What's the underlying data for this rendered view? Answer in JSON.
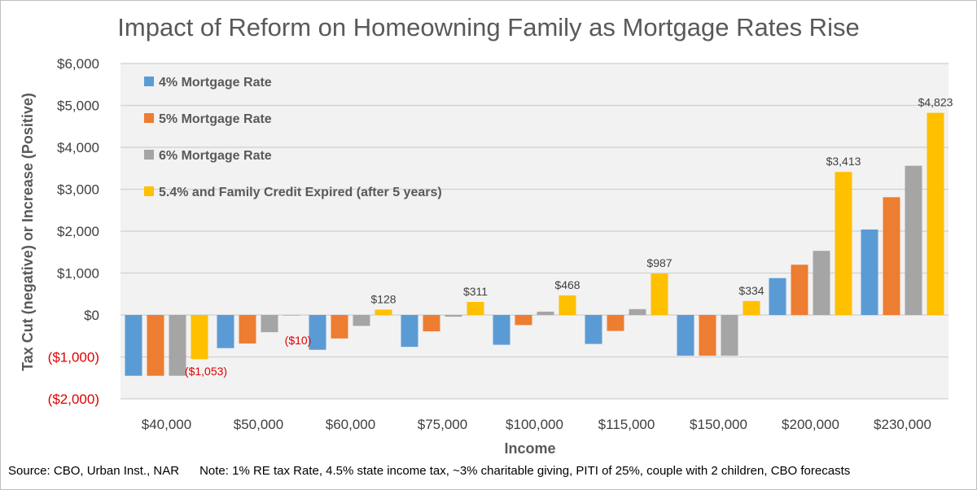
{
  "chart_data": {
    "type": "bar",
    "title": "Impact of Reform on Homeowning Family as Mortgage Rates Rise",
    "xlabel": "Income",
    "ylabel": "Tax Cut (negative) or Increase (Positive)",
    "ylim": [
      -2000,
      6000
    ],
    "yticks": [
      {
        "value": 6000,
        "label": "$6,000"
      },
      {
        "value": 5000,
        "label": "$5,000"
      },
      {
        "value": 4000,
        "label": "$4,000"
      },
      {
        "value": 3000,
        "label": "$3,000"
      },
      {
        "value": 2000,
        "label": "$2,000"
      },
      {
        "value": 1000,
        "label": "$1,000"
      },
      {
        "value": 0,
        "label": "$0"
      },
      {
        "value": -1000,
        "label": "($1,000)"
      },
      {
        "value": -2000,
        "label": "($2,000)"
      }
    ],
    "grid": true,
    "legend_position": "top-left",
    "categories": [
      "$40,000",
      "$50,000",
      "$60,000",
      "$75,000",
      "$100,000",
      "$115,000",
      "$150,000",
      "$200,000",
      "$230,000"
    ],
    "series": [
      {
        "name": "4% Mortgage Rate",
        "color": "#5b9bd5",
        "values": [
          -1450,
          -790,
          -830,
          -760,
          -710,
          -690,
          -970,
          880,
          2040
        ]
      },
      {
        "name": "5% Mortgage Rate",
        "color": "#ed7d31",
        "values": [
          -1450,
          -680,
          -560,
          -390,
          -240,
          -380,
          -970,
          1200,
          2810
        ]
      },
      {
        "name": "6% Mortgage Rate",
        "color": "#a5a5a5",
        "values": [
          -1450,
          -410,
          -260,
          -40,
          80,
          140,
          -970,
          1530,
          3560
        ]
      },
      {
        "name": "5.4% and Family Credit Expired (after 5 years)",
        "color": "#ffc000",
        "values": [
          -1053,
          -10,
          128,
          311,
          468,
          987,
          334,
          3413,
          4823
        ]
      }
    ],
    "data_labels": [
      {
        "category_index": 0,
        "series_index": 3,
        "text": "($1,053)"
      },
      {
        "category_index": 1,
        "series_index": 3,
        "text": "($10)"
      },
      {
        "category_index": 2,
        "series_index": 3,
        "text": "$128"
      },
      {
        "category_index": 3,
        "series_index": 3,
        "text": "$311"
      },
      {
        "category_index": 4,
        "series_index": 3,
        "text": "$468"
      },
      {
        "category_index": 5,
        "series_index": 3,
        "text": "$987"
      },
      {
        "category_index": 6,
        "series_index": 3,
        "text": "$334"
      },
      {
        "category_index": 7,
        "series_index": 3,
        "text": "$3,413"
      },
      {
        "category_index": 8,
        "series_index": 3,
        "text": "$4,823"
      }
    ],
    "negative_label_color": "#e00000"
  },
  "footer": {
    "source": "Source: CBO, Urban Inst., NAR",
    "note": "Note: 1% RE tax Rate, 4.5% state income tax, ~3% charitable giving, PITI of 25%, couple with 2 children, CBO forecasts"
  }
}
